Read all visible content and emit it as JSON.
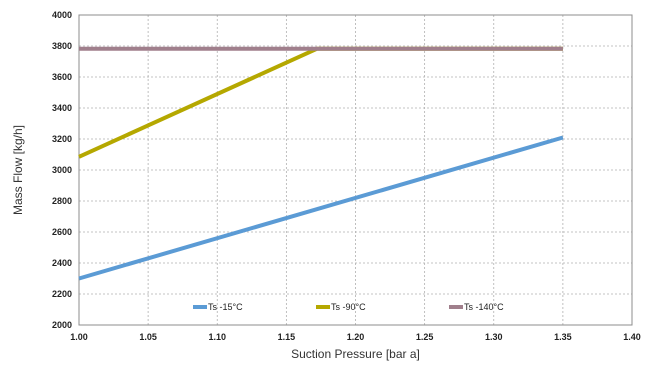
{
  "chart_data": {
    "type": "line",
    "xlabel": "Suction Pressure [bar a]",
    "ylabel": "Mass Flow [kg/h]",
    "xlim": [
      1.0,
      1.4
    ],
    "ylim": [
      2000,
      4000
    ],
    "xticks": [
      "1.00",
      "1.05",
      "1.10",
      "1.15",
      "1.20",
      "1.25",
      "1.30",
      "1.35",
      "1.40"
    ],
    "yticks": [
      "2000",
      "2200",
      "2400",
      "2600",
      "2800",
      "3000",
      "3200",
      "3400",
      "3600",
      "3800",
      "4000"
    ],
    "grid": true,
    "legend_position": "bottom-inside",
    "series": [
      {
        "name": "Ts -15°C",
        "color": "#5B9BD5",
        "x": [
          1.0,
          1.35
        ],
        "y": [
          2300,
          3210
        ]
      },
      {
        "name": "Ts -90°C",
        "color": "#B5A800",
        "x": [
          1.0,
          1.172,
          1.35
        ],
        "y": [
          3085,
          3782,
          3782
        ]
      },
      {
        "name": "Ts -140°C",
        "color": "#A07F8C",
        "x": [
          1.0,
          1.35
        ],
        "y": [
          3782,
          3782
        ]
      }
    ]
  }
}
